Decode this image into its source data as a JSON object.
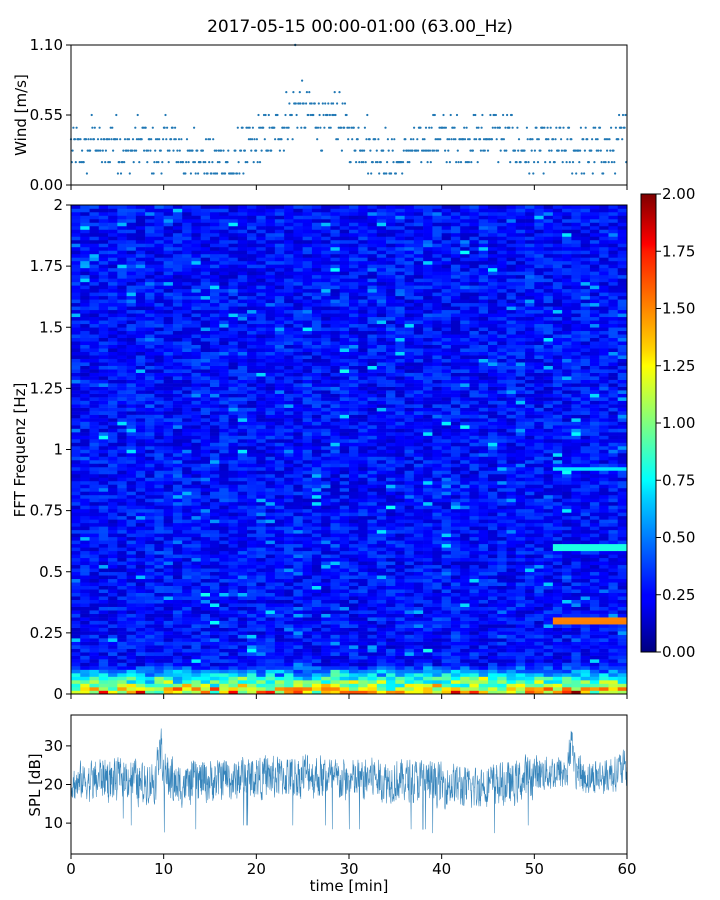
{
  "title": "2017-05-15 00:00-01:00 (63.00_Hz)",
  "colors": {
    "series": "#1f77b4",
    "axis": "#000000",
    "background": "#ffffff"
  },
  "chart_data": [
    {
      "type": "scatter",
      "name": "wind",
      "ylabel": "Wind [m/s]",
      "xlim": [
        0,
        60
      ],
      "ylim": [
        0,
        1.1
      ],
      "yticks": [
        "0.00",
        "0.55",
        "1.10"
      ],
      "ytick_values": [
        0,
        0.55,
        1.1
      ],
      "x_tick_labels_visible": false,
      "levels": [
        0.09,
        0.18,
        0.27,
        0.36,
        0.45,
        0.55,
        0.64,
        0.73,
        0.82,
        0.91,
        1.1
      ],
      "base_level_by_minute": [
        0.27,
        0.27,
        0.36,
        0.27,
        0.36,
        0.27,
        0.27,
        0.36,
        0.27,
        0.27,
        0.36,
        0.27,
        0.18,
        0.27,
        0.18,
        0.18,
        0.18,
        0.09,
        0.27,
        0.27,
        0.36,
        0.36,
        0.45,
        0.55,
        0.64,
        0.55,
        0.55,
        0.45,
        0.55,
        0.45,
        0.36,
        0.36,
        0.27,
        0.27,
        0.18,
        0.18,
        0.27,
        0.27,
        0.36,
        0.36,
        0.36,
        0.36,
        0.36,
        0.36,
        0.36,
        0.45,
        0.36,
        0.36,
        0.27,
        0.27,
        0.27,
        0.27,
        0.27,
        0.27,
        0.27,
        0.27,
        0.27,
        0.27,
        0.27,
        0.36
      ],
      "peak": {
        "x": 24.2,
        "y": 1.1
      }
    },
    {
      "type": "heatmap",
      "name": "spectrogram",
      "ylabel": "FFT Frequenz [Hz]",
      "xlim": [
        0,
        60
      ],
      "ylim": [
        0,
        2
      ],
      "yticks": [
        "0",
        "0.25",
        "0.5",
        "0.75",
        "1",
        "1.25",
        "1.5",
        "1.75",
        "2"
      ],
      "ytick_values": [
        0,
        0.25,
        0.5,
        0.75,
        1,
        1.25,
        1.5,
        1.75,
        2
      ],
      "colormap": "jet",
      "colorbar": {
        "range": [
          0,
          2
        ],
        "ticks": [
          "0.00",
          "0.25",
          "0.50",
          "0.75",
          "1.00",
          "1.25",
          "1.50",
          "1.75",
          "2.00"
        ],
        "tick_values": [
          0,
          0.25,
          0.5,
          0.75,
          1,
          1.25,
          1.5,
          1.75,
          2
        ]
      },
      "typical_level": 0.3,
      "low_frequency_level": 1.6,
      "highlights": [
        {
          "x_range": [
            52,
            60
          ],
          "frequency": 0.3,
          "level": 1.5
        },
        {
          "x_range": [
            52,
            60
          ],
          "frequency": 0.6,
          "level": 0.8
        },
        {
          "x_range": [
            52,
            60
          ],
          "frequency": 0.92,
          "level": 0.7
        }
      ]
    },
    {
      "type": "line",
      "name": "spl",
      "ylabel": "SPL [dB]",
      "xlabel": "time [min]",
      "xlim": [
        0,
        60
      ],
      "ylim": [
        2,
        38
      ],
      "xticks": [
        "0",
        "10",
        "20",
        "30",
        "40",
        "50",
        "60"
      ],
      "xtick_values": [
        0,
        10,
        20,
        30,
        40,
        50,
        60
      ],
      "yticks": [
        "10",
        "20",
        "30"
      ],
      "ytick_values": [
        10,
        20,
        30
      ],
      "mean_by_minute": [
        20,
        21,
        21,
        22,
        21,
        22,
        22,
        20,
        21,
        21,
        22,
        20,
        20,
        21,
        21,
        21,
        22,
        21,
        22,
        22,
        22,
        22,
        22,
        22,
        22,
        23,
        22,
        22,
        21,
        21,
        21,
        21,
        22,
        21,
        21,
        21,
        21,
        21,
        21,
        20,
        20,
        20,
        19,
        19,
        20,
        20,
        20,
        20,
        21,
        22,
        23,
        23,
        23,
        23,
        24,
        22,
        22,
        22,
        23,
        24
      ],
      "spread_by_minute": [
        6,
        6,
        7,
        7,
        7,
        6,
        7,
        7,
        7,
        7,
        8,
        7,
        7,
        7,
        7,
        7,
        7,
        7,
        7,
        7,
        7,
        7,
        7,
        7,
        7,
        7,
        7,
        7,
        7,
        7,
        7,
        7,
        7,
        7,
        7,
        7,
        7,
        7,
        7,
        7,
        7,
        7,
        7,
        7,
        7,
        7,
        7,
        7,
        7,
        7,
        6,
        6,
        6,
        6,
        6,
        6,
        6,
        6,
        6,
        6
      ],
      "spikes": [
        {
          "x": 9.6,
          "y": 35
        },
        {
          "x": 54.0,
          "y": 35
        }
      ]
    }
  ]
}
